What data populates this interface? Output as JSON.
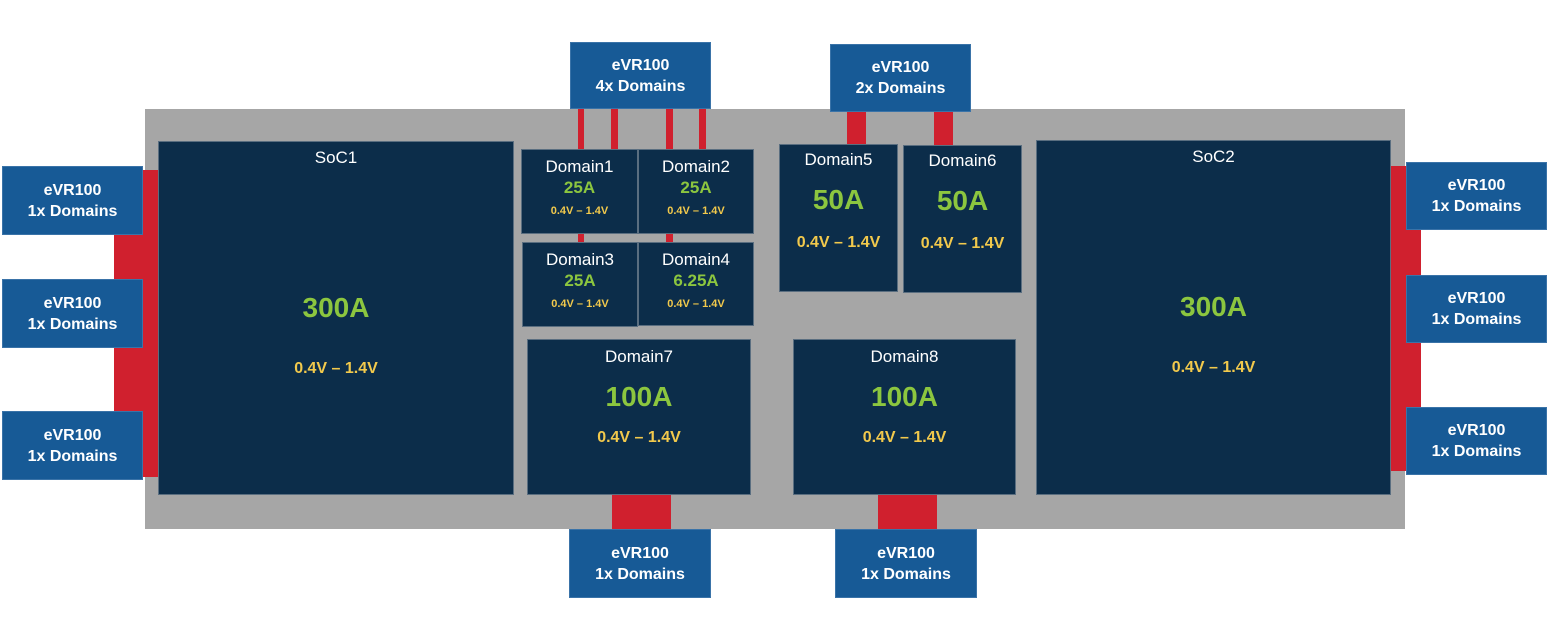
{
  "colors": {
    "board": "#a6a6a6",
    "connector": "#d0202e",
    "regulator": "#175a96",
    "block": "#0c2d4a",
    "current": "#8cc63f",
    "voltage": "#f2c94c"
  },
  "regulators": {
    "top_left": {
      "title": "eVR100",
      "sub": "4x Domains"
    },
    "top_right": {
      "title": "eVR100",
      "sub": "2x Domains"
    },
    "left": [
      {
        "title": "eVR100",
        "sub": "1x Domains"
      },
      {
        "title": "eVR100",
        "sub": "1x Domains"
      },
      {
        "title": "eVR100",
        "sub": "1x Domains"
      }
    ],
    "right": [
      {
        "title": "eVR100",
        "sub": "1x Domains"
      },
      {
        "title": "eVR100",
        "sub": "1x Domains"
      },
      {
        "title": "eVR100",
        "sub": "1x Domains"
      }
    ],
    "bottom": [
      {
        "title": "eVR100",
        "sub": "1x Domains"
      },
      {
        "title": "eVR100",
        "sub": "1x Domains"
      }
    ]
  },
  "blocks": {
    "soc1": {
      "name": "SoC1",
      "current": "300A",
      "voltage": "0.4V – 1.4V"
    },
    "soc2": {
      "name": "SoC2",
      "current": "300A",
      "voltage": "0.4V – 1.4V"
    },
    "d1": {
      "name": "Domain1",
      "current": "25A",
      "voltage": "0.4V – 1.4V"
    },
    "d2": {
      "name": "Domain2",
      "current": "25A",
      "voltage": "0.4V – 1.4V"
    },
    "d3": {
      "name": "Domain3",
      "current": "25A",
      "voltage": "0.4V – 1.4V"
    },
    "d4": {
      "name": "Domain4",
      "current": "6.25A",
      "voltage": "0.4V – 1.4V"
    },
    "d5": {
      "name": "Domain5",
      "current": "50A",
      "voltage": "0.4V – 1.4V"
    },
    "d6": {
      "name": "Domain6",
      "current": "50A",
      "voltage": "0.4V – 1.4V"
    },
    "d7": {
      "name": "Domain7",
      "current": "100A",
      "voltage": "0.4V – 1.4V"
    },
    "d8": {
      "name": "Domain8",
      "current": "100A",
      "voltage": "0.4V – 1.4V"
    }
  }
}
